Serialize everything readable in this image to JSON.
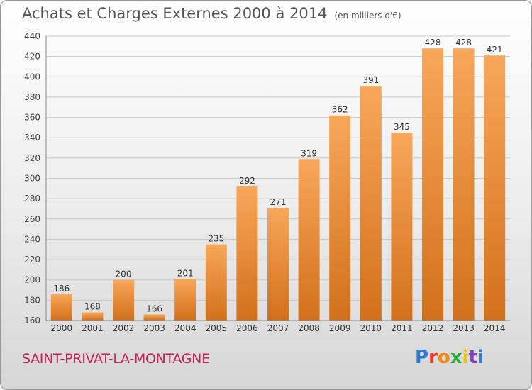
{
  "header": {
    "title": "Achats et Charges Externes 2000 à 2014",
    "unit": "(en milliers d'€)"
  },
  "footer": {
    "commune": "SAINT-PRIVAT-LA-MONTAGNE",
    "logo": "Proxiti"
  },
  "colors": {
    "bar_light": "#f8a75a",
    "bar_dark": "#d2701a",
    "grid": "#c8c8c8",
    "title": "#555555",
    "commune": "#c8205a"
  },
  "chart_data": {
    "type": "bar",
    "title": "Achats et Charges Externes 2000 à 2014",
    "subtitle": "(en milliers d'€)",
    "xlabel": "",
    "ylabel": "",
    "categories": [
      "2000",
      "2001",
      "2002",
      "2003",
      "2004",
      "2005",
      "2006",
      "2007",
      "2008",
      "2009",
      "2010",
      "2011",
      "2012",
      "2013",
      "2014"
    ],
    "values": [
      186,
      168,
      200,
      166,
      201,
      235,
      292,
      271,
      319,
      362,
      391,
      345,
      428,
      428,
      421
    ],
    "ylim": [
      160,
      440
    ],
    "yticks": [
      160,
      180,
      200,
      220,
      240,
      260,
      280,
      300,
      320,
      340,
      360,
      380,
      400,
      420,
      440
    ],
    "grid": true,
    "legend": "none"
  }
}
